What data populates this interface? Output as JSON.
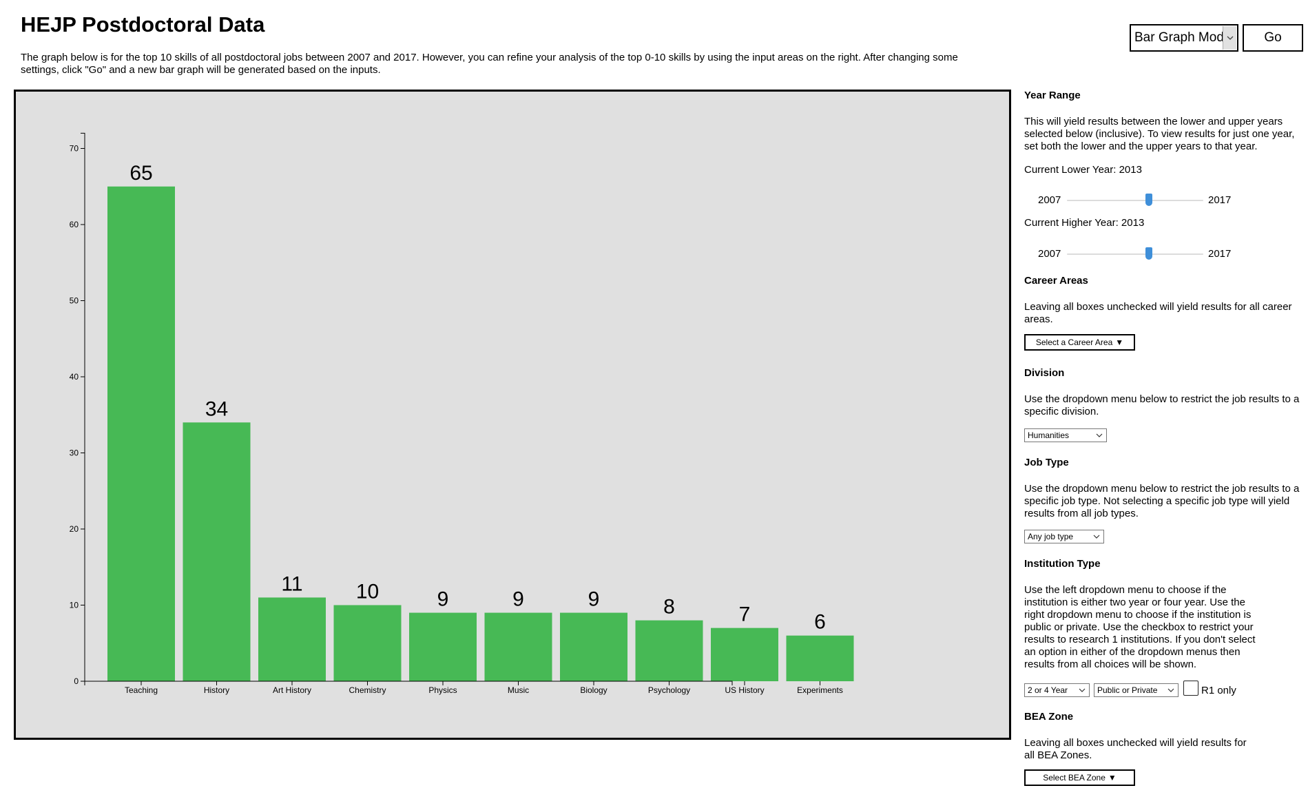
{
  "header": {
    "title": "HEJP Postdoctoral Data",
    "intro": "The graph below is for the top 10 skills of all postdoctoral jobs between 2007 and 2017. However, you can refine your analysis of the top 0-10 skills by using the input areas on the right. After changing some settings, click \"Go\" and a new bar graph will be generated based on the inputs."
  },
  "controls": {
    "mode_selected": "Bar Graph Mode",
    "go_label": "Go"
  },
  "sidebar": {
    "year_range": {
      "heading": "Year Range",
      "description": "This will yield results between the lower and upper years selected below (inclusive). To view results for just one year, set both the lower and the upper years to that year.",
      "lower_label": "Current Lower Year: 2013",
      "higher_label": "Current Higher Year: 2013",
      "min": "2007",
      "max": "2017",
      "lower_value": 2013,
      "higher_value": 2013
    },
    "career_areas": {
      "heading": "Career Areas",
      "description": "Leaving all boxes unchecked will yield results for all career areas.",
      "button_label": "Select a Career Area",
      "caret": "▼"
    },
    "division": {
      "heading": "Division",
      "description": "Use the dropdown menu below to restrict the job results to a specific division.",
      "selected": "Humanities"
    },
    "job_type": {
      "heading": "Job Type",
      "description": "Use the dropdown menu below to restrict the job results to a specific job type. Not selecting a specific job type will yield results from all job types.",
      "selected": "Any job type"
    },
    "institution_type": {
      "heading": "Institution Type",
      "description": "Use the left dropdown menu to choose if the institution is either two year or four year. Use the right dropdown menu to choose if the institution is public or private. Use the checkbox to restrict your results to research 1 institutions. If you don't select an option in either of the dropdown menus then results from all choices will be shown.",
      "year_selected": "2 or 4 Year",
      "control_selected": "Public or Private",
      "r1_label": "R1 only",
      "r1_checked": false
    },
    "bea_zone": {
      "heading": "BEA Zone",
      "description": "Leaving all boxes unchecked will yield results for all BEA Zones.",
      "button_label": "Select BEA Zone",
      "caret": "▼"
    }
  },
  "chart_data": {
    "type": "bar",
    "categories": [
      "Teaching",
      "History",
      "Art History",
      "Chemistry",
      "Physics",
      "Music",
      "Biology",
      "Psychology",
      "US History",
      "Experiments"
    ],
    "values": [
      65,
      34,
      11,
      10,
      9,
      9,
      9,
      8,
      7,
      6
    ],
    "ylim": [
      0,
      72
    ],
    "yticks": [
      "0",
      "10",
      "20",
      "30",
      "40",
      "50",
      "60",
      "70"
    ],
    "bar_color": "#47b955",
    "background": "#e0e0e0",
    "data_labels": true,
    "grid": false
  }
}
